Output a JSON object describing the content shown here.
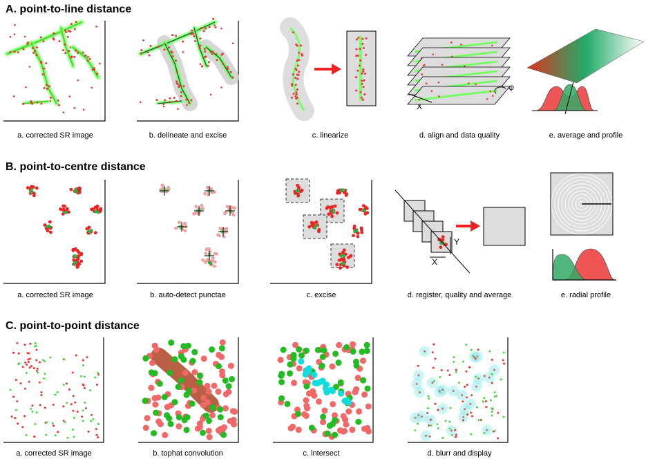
{
  "sections": [
    {
      "title": "A. point-to-line distance",
      "captions": [
        "a. corrected SR image",
        "b. delineate and excise",
        "c. linearize",
        "d. align and data quality",
        "e. average and profile"
      ],
      "labels": [
        "X",
        "φ"
      ]
    },
    {
      "title": "B. point-to-centre distance",
      "captions": [
        "a. corrected SR image",
        "b. auto-detect punctae",
        "c. excise",
        "d. register, quality and average",
        "e. radial profile"
      ],
      "labels": [
        "Y",
        "X"
      ]
    },
    {
      "title": "C. point-to-point distance",
      "captions": [
        "a. corrected SR image",
        "b. tophat convolution",
        "c. intersect",
        "d. blurr and display"
      ]
    }
  ]
}
